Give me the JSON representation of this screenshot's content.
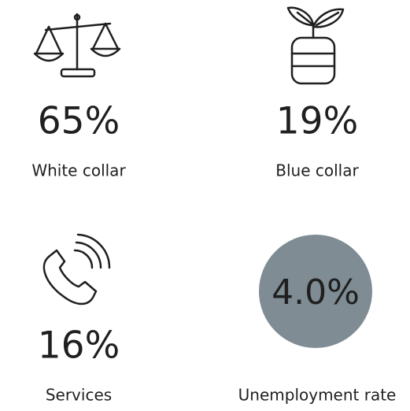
{
  "items": [
    {
      "value": "65%",
      "label": "White collar"
    },
    {
      "value": "19%",
      "label": "Blue collar"
    },
    {
      "value": "16%",
      "label": "Services"
    },
    {
      "value": "4.0%",
      "label": "Unemployment rate"
    }
  ]
}
